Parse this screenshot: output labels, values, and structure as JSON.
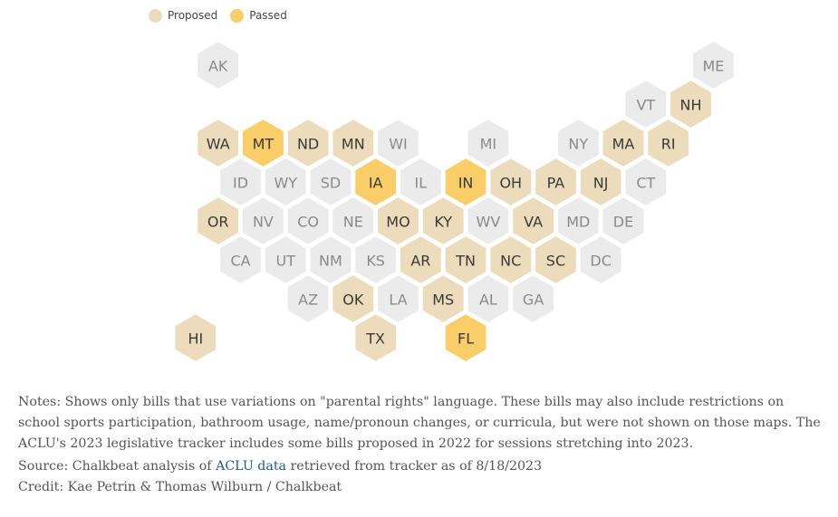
{
  "legend": {
    "proposed_label": "Proposed",
    "passed_label": "Passed"
  },
  "colors": {
    "none": "#ebebeb",
    "proposed": "#ecdcbb",
    "passed": "#f9cd68",
    "label_none": "#8a8a8a",
    "label_active": "#3a3a3a"
  },
  "states": [
    {
      "abbr": "AK",
      "status": "none"
    },
    {
      "abbr": "ME",
      "status": "none"
    },
    {
      "abbr": "VT",
      "status": "none"
    },
    {
      "abbr": "NH",
      "status": "proposed"
    },
    {
      "abbr": "WA",
      "status": "proposed"
    },
    {
      "abbr": "MT",
      "status": "passed"
    },
    {
      "abbr": "ND",
      "status": "proposed"
    },
    {
      "abbr": "MN",
      "status": "proposed"
    },
    {
      "abbr": "WI",
      "status": "none"
    },
    {
      "abbr": "MI",
      "status": "none"
    },
    {
      "abbr": "NY",
      "status": "none"
    },
    {
      "abbr": "MA",
      "status": "proposed"
    },
    {
      "abbr": "RI",
      "status": "proposed"
    },
    {
      "abbr": "ID",
      "status": "none"
    },
    {
      "abbr": "WY",
      "status": "none"
    },
    {
      "abbr": "SD",
      "status": "none"
    },
    {
      "abbr": "IA",
      "status": "passed"
    },
    {
      "abbr": "IL",
      "status": "none"
    },
    {
      "abbr": "IN",
      "status": "passed"
    },
    {
      "abbr": "OH",
      "status": "proposed"
    },
    {
      "abbr": "PA",
      "status": "proposed"
    },
    {
      "abbr": "NJ",
      "status": "proposed"
    },
    {
      "abbr": "CT",
      "status": "none"
    },
    {
      "abbr": "OR",
      "status": "proposed"
    },
    {
      "abbr": "NV",
      "status": "none"
    },
    {
      "abbr": "CO",
      "status": "none"
    },
    {
      "abbr": "NE",
      "status": "none"
    },
    {
      "abbr": "MO",
      "status": "proposed"
    },
    {
      "abbr": "KY",
      "status": "proposed"
    },
    {
      "abbr": "WV",
      "status": "none"
    },
    {
      "abbr": "VA",
      "status": "proposed"
    },
    {
      "abbr": "MD",
      "status": "none"
    },
    {
      "abbr": "DE",
      "status": "none"
    },
    {
      "abbr": "CA",
      "status": "none"
    },
    {
      "abbr": "UT",
      "status": "none"
    },
    {
      "abbr": "NM",
      "status": "none"
    },
    {
      "abbr": "KS",
      "status": "none"
    },
    {
      "abbr": "AR",
      "status": "proposed"
    },
    {
      "abbr": "TN",
      "status": "proposed"
    },
    {
      "abbr": "NC",
      "status": "proposed"
    },
    {
      "abbr": "SC",
      "status": "proposed"
    },
    {
      "abbr": "DC",
      "status": "none"
    },
    {
      "abbr": "AZ",
      "status": "none"
    },
    {
      "abbr": "OK",
      "status": "proposed"
    },
    {
      "abbr": "LA",
      "status": "none"
    },
    {
      "abbr": "MS",
      "status": "proposed"
    },
    {
      "abbr": "AL",
      "status": "none"
    },
    {
      "abbr": "GA",
      "status": "none"
    },
    {
      "abbr": "HI",
      "status": "proposed"
    },
    {
      "abbr": "TX",
      "status": "proposed"
    },
    {
      "abbr": "FL",
      "status": "passed"
    }
  ],
  "notes": {
    "text": "Notes: Shows only bills that use variations on \"parental rights\" language. These bills may also include restrictions on school sports participation, bathroom usage, name/pronoun changes, or curricula, but were not shown on those maps. The ACLU's 2023 legislative tracker includes some bills proposed in 2022 for sessions stretching into 2023.",
    "source_prefix": "Source: Chalkbeat analysis of ",
    "source_link": "ACLU data",
    "source_suffix": " retrieved from tracker as of 8/18/2023",
    "credit": "Credit: Kae Petrin & Thomas Wilburn / Chalkbeat"
  }
}
